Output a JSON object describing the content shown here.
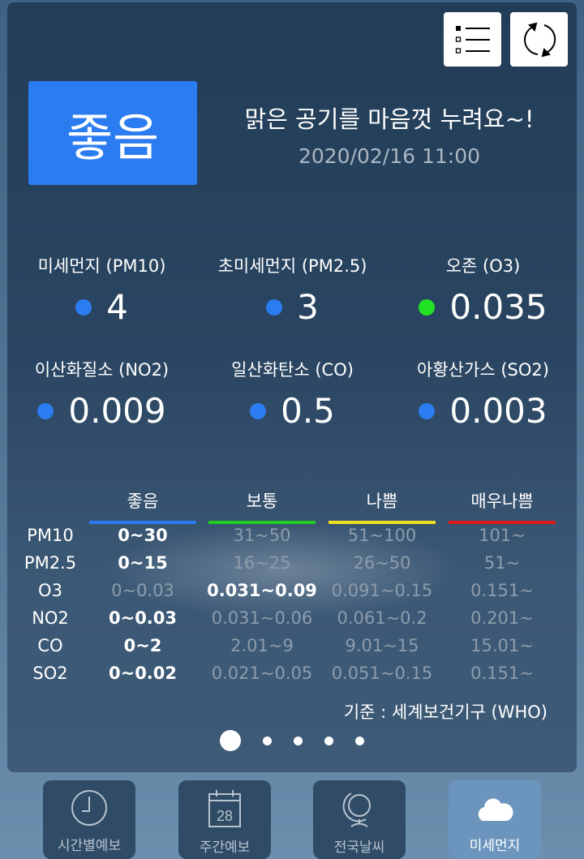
{
  "header": {
    "list_icon": "list-icon",
    "refresh_icon": "refresh-icon"
  },
  "status": {
    "grade": "좋음",
    "grade_color": "#2a7cf0",
    "message": "맑은 공기를 마음껏 누려요~!",
    "datetime": "2020/02/16 11:00"
  },
  "pollutants": [
    {
      "label": "미세먼지 (PM10)",
      "value": "4",
      "color": "#2a7cf0"
    },
    {
      "label": "초미세먼지 (PM2.5)",
      "value": "3",
      "color": "#2a7cf0"
    },
    {
      "label": "오존 (O3)",
      "value": "0.035",
      "color": "#22e022"
    },
    {
      "label": "이산화질소 (NO2)",
      "value": "0.009",
      "color": "#2a7cf0"
    },
    {
      "label": "일산화탄소 (CO)",
      "value": "0.5",
      "color": "#2a7cf0"
    },
    {
      "label": "아황산가스 (SO2)",
      "value": "0.003",
      "color": "#2a7cf0"
    }
  ],
  "table": {
    "headers": [
      {
        "label": "좋음",
        "color": "#2a7cf0"
      },
      {
        "label": "보통",
        "color": "#22cc22"
      },
      {
        "label": "나쁨",
        "color": "#f0e020"
      },
      {
        "label": "매우나쁨",
        "color": "#dd1a1a"
      }
    ],
    "rows": [
      {
        "name": "PM10",
        "cells": [
          "0~30",
          "31~50",
          "51~100",
          "101~"
        ],
        "active": 0
      },
      {
        "name": "PM2.5",
        "cells": [
          "0~15",
          "16~25",
          "26~50",
          "51~"
        ],
        "active": 0
      },
      {
        "name": "O3",
        "cells": [
          "0~0.03",
          "0.031~0.09",
          "0.091~0.15",
          "0.151~"
        ],
        "active": 1
      },
      {
        "name": "NO2",
        "cells": [
          "0~0.03",
          "0.031~0.06",
          "0.061~0.2",
          "0.201~"
        ],
        "active": 0
      },
      {
        "name": "CO",
        "cells": [
          "0~2",
          "2.01~9",
          "9.01~15",
          "15.01~"
        ],
        "active": 0
      },
      {
        "name": "SO2",
        "cells": [
          "0~0.02",
          "0.021~0.05",
          "0.051~0.15",
          "0.151~"
        ],
        "active": 0
      }
    ],
    "source": "기준 : 세계보건기구 (WHO)"
  },
  "pager": {
    "pages": 5,
    "current": 1
  },
  "nav": [
    {
      "label": "시간별예보",
      "icon": "clock-icon"
    },
    {
      "label": "주간예보",
      "icon": "calendar-icon",
      "day": "28"
    },
    {
      "label": "전국날씨",
      "icon": "globe-icon"
    },
    {
      "label": "미세먼지",
      "icon": "cloud-icon",
      "active": true
    }
  ]
}
